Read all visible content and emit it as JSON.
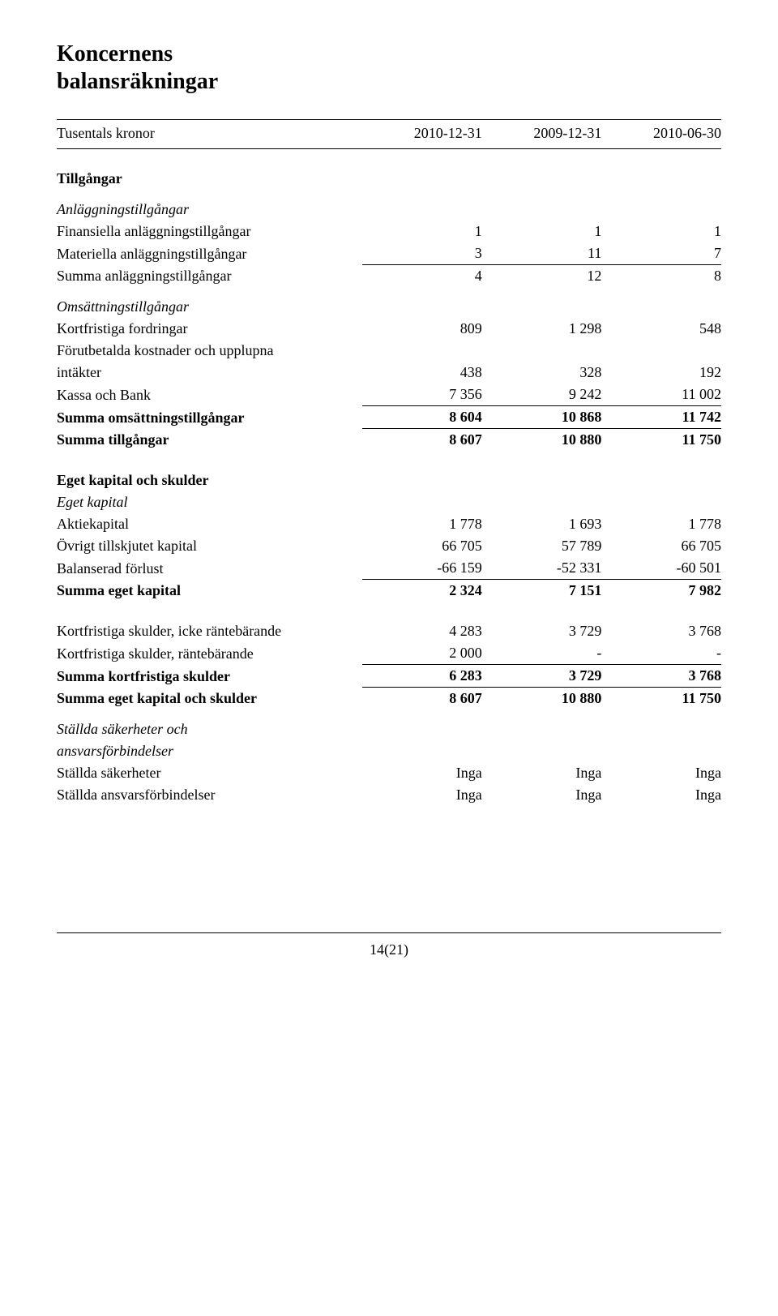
{
  "title_line1": "Koncernens",
  "title_line2": "balansräkningar",
  "header": {
    "label": "Tusentals kronor",
    "c1": "2010-12-31",
    "c2": "2009-12-31",
    "c3": "2010-06-30"
  },
  "assets": {
    "section_title": "Tillgångar",
    "fixed_heading": "Anläggningstillgångar",
    "fin_fixed": {
      "label": "Finansiella anläggningstillgångar",
      "v1": "1",
      "v2": "1",
      "v3": "1"
    },
    "mat_fixed": {
      "label": "Materiella anläggningstillgångar",
      "v1": "3",
      "v2": "11",
      "v3": "7"
    },
    "sum_fixed": {
      "label": "Summa anläggningstillgångar",
      "v1": "4",
      "v2": "12",
      "v3": "8"
    },
    "current_heading": "Omsättningstillgångar",
    "receivables": {
      "label": "Kortfristiga fordringar",
      "v1": "809",
      "v2": "1 298",
      "v3": "548"
    },
    "prepaid_l1": "Förutbetalda kostnader och upplupna",
    "prepaid_l2": "intäkter",
    "prepaid": {
      "v1": "438",
      "v2": "328",
      "v3": "192"
    },
    "cash": {
      "label": "Kassa och Bank",
      "v1": "7 356",
      "v2": "9 242",
      "v3": "11 002"
    },
    "sum_current": {
      "label": "Summa omsättningstillgångar",
      "v1": "8 604",
      "v2": "10 868",
      "v3": "11 742"
    },
    "sum_total": {
      "label": "Summa tillgångar",
      "v1": "8 607",
      "v2": "10 880",
      "v3": "11 750"
    }
  },
  "equity": {
    "section_title": "Eget kapital och skulder",
    "equity_heading": "Eget kapital",
    "share_capital": {
      "label": "Aktiekapital",
      "v1": "1 778",
      "v2": "1 693",
      "v3": "1 778"
    },
    "other_contrib": {
      "label": "Övrigt tillskjutet kapital",
      "v1": "66 705",
      "v2": "57 789",
      "v3": "66 705"
    },
    "accum_loss": {
      "label": "Balanserad förlust",
      "v1": "-66 159",
      "v2": "-52 331",
      "v3": "-60 501"
    },
    "sum_equity": {
      "label": "Summa eget kapital",
      "v1": "2 324",
      "v2": "7 151",
      "v3": "7 982"
    }
  },
  "liab": {
    "st_non_int": {
      "label": "Kortfristiga skulder, icke räntebärande",
      "v1": "4 283",
      "v2": "3 729",
      "v3": "3 768"
    },
    "st_int": {
      "label": "Kortfristiga skulder, räntebärande",
      "v1": "2 000",
      "v2": "-",
      "v3": "-"
    },
    "sum_st": {
      "label": "Summa kortfristiga skulder",
      "v1": "6 283",
      "v2": "3 729",
      "v3": "3 768"
    },
    "sum_total": {
      "label": "Summa eget kapital och skulder",
      "v1": "8 607",
      "v2": "10 880",
      "v3": "11 750"
    }
  },
  "pledge": {
    "heading_l1": "Ställda säkerheter och",
    "heading_l2": "ansvarsförbindelser",
    "pledged": {
      "label": "Ställda säkerheter",
      "v1": "Inga",
      "v2": "Inga",
      "v3": "Inga"
    },
    "contingent": {
      "label": "Ställda ansvarsförbindelser",
      "v1": "Inga",
      "v2": "Inga",
      "v3": "Inga"
    }
  },
  "footer": "14(21)"
}
